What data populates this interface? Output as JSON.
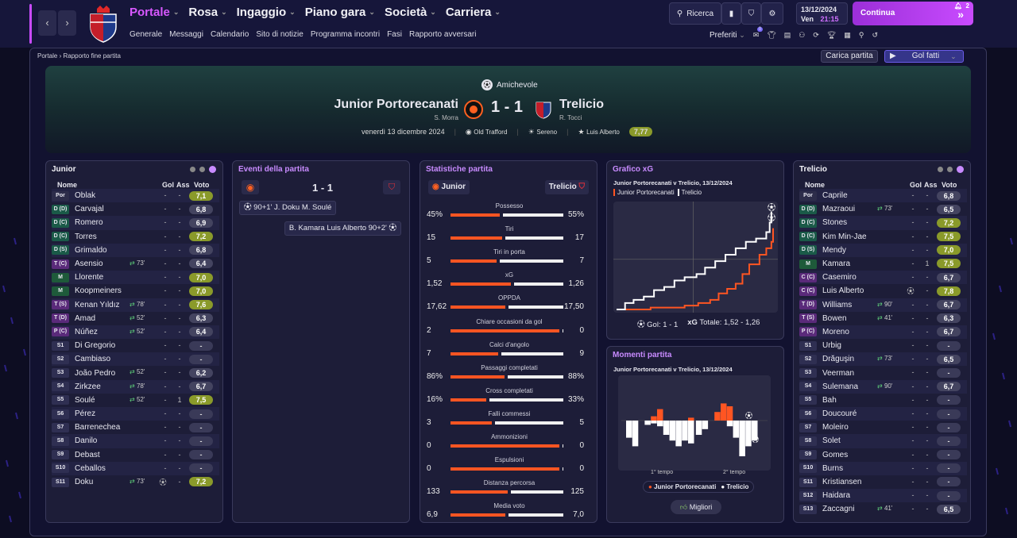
{
  "nav": {
    "main": [
      "Portale",
      "Rosa",
      "Ingaggio",
      "Piano gara",
      "Società",
      "Carriera"
    ],
    "sub": [
      "Generale",
      "Messaggi",
      "Calendario",
      "Sito di notizie",
      "Programma incontri",
      "Fasi",
      "Rapporto avversari"
    ]
  },
  "toolbar": {
    "search": "Ricerca",
    "date": "13/12/2024",
    "day": "Ven",
    "time": "21:15",
    "continue": "Continua",
    "badge": "2",
    "preferiti": "Preferiti",
    "pref_badge": "0"
  },
  "breadcrumb": {
    "root": "Portale",
    "current": "Rapporto fine partita"
  },
  "actions": {
    "load": "Carica partita",
    "goals": "Gol fatti"
  },
  "match": {
    "comp": "Amichevole",
    "home": "Junior Portorecanati",
    "away": "Trelicio",
    "score": "1 - 1",
    "home_coach": "S. Morra",
    "away_coach": "R. Tocci",
    "date": "venerdì 13 dicembre 2024",
    "stadium": "Old Trafford",
    "weather": "Sereno",
    "motm": "Luis Alberto",
    "motm_rating": "7,77"
  },
  "home_panel": {
    "title": "Junior",
    "col_name": "Nome",
    "col_gol": "Gol",
    "col_ass": "Ass",
    "col_voto": "Voto",
    "players": [
      {
        "pos": "Por",
        "name": "Oblak",
        "sub": "",
        "g": "-",
        "a": "-",
        "v": "7,1"
      },
      {
        "pos": "D (D)",
        "name": "Carvajal",
        "sub": "",
        "g": "-",
        "a": "-",
        "v": "6,8"
      },
      {
        "pos": "D (C)",
        "name": "Romero",
        "sub": "",
        "g": "-",
        "a": "-",
        "v": "6,9"
      },
      {
        "pos": "D (C)",
        "name": "Torres",
        "sub": "",
        "g": "-",
        "a": "-",
        "v": "7,2"
      },
      {
        "pos": "D (S)",
        "name": "Grimaldo",
        "sub": "",
        "g": "-",
        "a": "-",
        "v": "6,8"
      },
      {
        "pos": "T (C)",
        "name": "Asensio",
        "sub": "73'",
        "g": "-",
        "a": "-",
        "v": "6,4"
      },
      {
        "pos": "M",
        "name": "Llorente",
        "sub": "",
        "g": "-",
        "a": "-",
        "v": "7,0"
      },
      {
        "pos": "M",
        "name": "Koopmeiners",
        "sub": "",
        "g": "-",
        "a": "-",
        "v": "7,0"
      },
      {
        "pos": "T (S)",
        "name": "Kenan Yıldız",
        "sub": "78'",
        "g": "-",
        "a": "-",
        "v": "7,6"
      },
      {
        "pos": "T (D)",
        "name": "Amad",
        "sub": "52'",
        "g": "-",
        "a": "-",
        "v": "6,3"
      },
      {
        "pos": "P (C)",
        "name": "Núñez",
        "sub": "52'",
        "g": "-",
        "a": "-",
        "v": "6,4"
      },
      {
        "pos": "S1",
        "name": "Di Gregorio",
        "sub": "",
        "g": "-",
        "a": "-",
        "v": "-"
      },
      {
        "pos": "S2",
        "name": "Cambiaso",
        "sub": "",
        "g": "-",
        "a": "-",
        "v": "-"
      },
      {
        "pos": "S3",
        "name": "João Pedro",
        "sub": "52'",
        "g": "-",
        "a": "-",
        "v": "6,2"
      },
      {
        "pos": "S4",
        "name": "Zirkzee",
        "sub": "78'",
        "g": "-",
        "a": "-",
        "v": "6,7"
      },
      {
        "pos": "S5",
        "name": "Soulé",
        "sub": "52'",
        "g": "-",
        "a": "1",
        "v": "7,5"
      },
      {
        "pos": "S6",
        "name": "Pérez",
        "sub": "",
        "g": "-",
        "a": "-",
        "v": "-"
      },
      {
        "pos": "S7",
        "name": "Barrenechea",
        "sub": "",
        "g": "-",
        "a": "-",
        "v": "-"
      },
      {
        "pos": "S8",
        "name": "Danilo",
        "sub": "",
        "g": "-",
        "a": "-",
        "v": "-"
      },
      {
        "pos": "S9",
        "name": "Debast",
        "sub": "",
        "g": "-",
        "a": "-",
        "v": "-"
      },
      {
        "pos": "S10",
        "name": "Ceballos",
        "sub": "",
        "g": "-",
        "a": "-",
        "v": "-"
      },
      {
        "pos": "S11",
        "name": "Doku",
        "sub": "73'",
        "g": "goal-icon",
        "a": "-",
        "v": "7,2"
      }
    ]
  },
  "away_panel": {
    "title": "Trelicio",
    "col_name": "Nome",
    "col_gol": "Gol",
    "col_ass": "Ass",
    "col_voto": "Voto",
    "players": [
      {
        "pos": "Por",
        "name": "Caprile",
        "sub": "",
        "g": "-",
        "a": "-",
        "v": "6,8"
      },
      {
        "pos": "D (D)",
        "name": "Mazraoui",
        "sub": "73'",
        "g": "-",
        "a": "-",
        "v": "6,5"
      },
      {
        "pos": "D (C)",
        "name": "Stones",
        "sub": "",
        "g": "-",
        "a": "-",
        "v": "7,2"
      },
      {
        "pos": "D (C)",
        "name": "Kim Min-Jae",
        "sub": "",
        "g": "-",
        "a": "-",
        "v": "7,5"
      },
      {
        "pos": "D (S)",
        "name": "Mendy",
        "sub": "",
        "g": "-",
        "a": "-",
        "v": "7,0"
      },
      {
        "pos": "M",
        "name": "Kamara",
        "sub": "",
        "g": "-",
        "a": "1",
        "v": "7,5"
      },
      {
        "pos": "C (C)",
        "name": "Casemiro",
        "sub": "",
        "g": "-",
        "a": "-",
        "v": "6,7"
      },
      {
        "pos": "C (C)",
        "name": "Luis Alberto",
        "sub": "",
        "g": "goal-icon",
        "a": "-",
        "v": "7,8"
      },
      {
        "pos": "T (D)",
        "name": "Williams",
        "sub": "90'",
        "g": "-",
        "a": "-",
        "v": "6,7"
      },
      {
        "pos": "T (S)",
        "name": "Bowen",
        "sub": "41'",
        "g": "-",
        "a": "-",
        "v": "6,3"
      },
      {
        "pos": "P (C)",
        "name": "Moreno",
        "sub": "",
        "g": "-",
        "a": "-",
        "v": "6,7"
      },
      {
        "pos": "S1",
        "name": "Urbig",
        "sub": "",
        "g": "-",
        "a": "-",
        "v": "-"
      },
      {
        "pos": "S2",
        "name": "Drăguşin",
        "sub": "73'",
        "g": "-",
        "a": "-",
        "v": "6,5"
      },
      {
        "pos": "S3",
        "name": "Veerman",
        "sub": "",
        "g": "-",
        "a": "-",
        "v": "-"
      },
      {
        "pos": "S4",
        "name": "Sulemana",
        "sub": "90'",
        "g": "-",
        "a": "-",
        "v": "6,7"
      },
      {
        "pos": "S5",
        "name": "Bah",
        "sub": "",
        "g": "-",
        "a": "-",
        "v": "-"
      },
      {
        "pos": "S6",
        "name": "Doucouré",
        "sub": "",
        "g": "-",
        "a": "-",
        "v": "-"
      },
      {
        "pos": "S7",
        "name": "Moleiro",
        "sub": "",
        "g": "-",
        "a": "-",
        "v": "-"
      },
      {
        "pos": "S8",
        "name": "Solet",
        "sub": "",
        "g": "-",
        "a": "-",
        "v": "-"
      },
      {
        "pos": "S9",
        "name": "Gomes",
        "sub": "",
        "g": "-",
        "a": "-",
        "v": "-"
      },
      {
        "pos": "S10",
        "name": "Burns",
        "sub": "",
        "g": "-",
        "a": "-",
        "v": "-"
      },
      {
        "pos": "S11",
        "name": "Kristiansen",
        "sub": "",
        "g": "-",
        "a": "-",
        "v": "-"
      },
      {
        "pos": "S12",
        "name": "Haidara",
        "sub": "",
        "g": "-",
        "a": "-",
        "v": "-"
      },
      {
        "pos": "S13",
        "name": "Zaccagni",
        "sub": "41'",
        "g": "-",
        "a": "-",
        "v": "6,5"
      }
    ]
  },
  "events": {
    "title": "Eventi della partita",
    "score": "1 - 1",
    "list": [
      {
        "side": "home",
        "text": "90+1' J. Doku M. Soulé"
      },
      {
        "side": "away",
        "text": "B. Kamara Luis Alberto 90+2'"
      }
    ]
  },
  "stats": {
    "title": "Statistiche partita",
    "home": "Junior",
    "away": "Trelicio",
    "rows": [
      {
        "label": "Possesso",
        "h": "45%",
        "a": "55%",
        "hf": 0.45
      },
      {
        "label": "Tiri",
        "h": "15",
        "a": "17",
        "hf": 0.47
      },
      {
        "label": "Tiri in porta",
        "h": "5",
        "a": "7",
        "hf": 0.42
      },
      {
        "label": "xG",
        "h": "1,52",
        "a": "1,26",
        "hf": 0.55
      },
      {
        "label": "OPPDA",
        "h": "17,62",
        "a": "17,50",
        "hf": 0.5
      },
      {
        "label": "Chiare occasioni da gol",
        "h": "2",
        "a": "0",
        "hf": 0.98
      },
      {
        "label": "Calci d'angolo",
        "h": "7",
        "a": "9",
        "hf": 0.44
      },
      {
        "label": "Passaggi completati",
        "h": "86%",
        "a": "88%",
        "hf": 0.49
      },
      {
        "label": "Cross completati",
        "h": "16%",
        "a": "33%",
        "hf": 0.33
      },
      {
        "label": "Falli commessi",
        "h": "3",
        "a": "5",
        "hf": 0.38
      },
      {
        "label": "Ammonizioni",
        "h": "0",
        "a": "0",
        "hf": 0.98
      },
      {
        "label": "Espulsioni",
        "h": "0",
        "a": "0",
        "hf": 0.98
      },
      {
        "label": "Distanza percorsa",
        "h": "133",
        "a": "125",
        "hf": 0.52
      },
      {
        "label": "Media voto",
        "h": "6,9",
        "a": "7,0",
        "hf": 0.5
      }
    ]
  },
  "xg": {
    "title": "Grafico xG",
    "subtitle": "Junior Portorecanati v Trelicio, 13/12/2024",
    "legend_home": "Junior Portorecanati",
    "legend_away": "Trelicio",
    "goals": "Gol: 1 - 1",
    "total_label": "xG",
    "total": "Totale: 1,52 - 1,26"
  },
  "momenti": {
    "title": "Momenti partita",
    "subtitle": "Junior Portorecanati v Trelicio, 13/12/2024",
    "t1": "1° tempo",
    "t2": "2° tempo",
    "legend_home": "Junior Portorecanati",
    "legend_away": "Trelicio",
    "best": "Migliori"
  },
  "chart_data": [
    {
      "type": "line",
      "title": "Grafico xG",
      "xlim": [
        0,
        92
      ],
      "series": [
        {
          "name": "Junior Portorecanati",
          "color": "#ffffff",
          "x": [
            0,
            5,
            10,
            16,
            22,
            28,
            34,
            40,
            47,
            52,
            58,
            64,
            70,
            76,
            82,
            88,
            90,
            91
          ],
          "y": [
            0,
            0.1,
            0.15,
            0.2,
            0.3,
            0.35,
            0.45,
            0.5,
            0.55,
            0.65,
            0.75,
            0.85,
            0.95,
            1.05,
            1.1,
            1.2,
            1.35,
            1.52
          ]
        },
        {
          "name": "Trelicio",
          "color": "#ff5522",
          "x": [
            0,
            20,
            40,
            48,
            55,
            60,
            65,
            70,
            74,
            78,
            84,
            88,
            91,
            92
          ],
          "y": [
            0,
            0.03,
            0.06,
            0.1,
            0.15,
            0.25,
            0.32,
            0.4,
            0.55,
            0.7,
            0.85,
            0.95,
            1.05,
            1.26
          ]
        }
      ]
    },
    {
      "type": "bar",
      "title": "Momenti partita",
      "series": [
        {
          "name": "Junior Portorecanati",
          "color": "#ff5522",
          "values": [
            0,
            0,
            0,
            0,
            0.03,
            0.08,
            0,
            0,
            0,
            0,
            0.02,
            0,
            0,
            0,
            0.06,
            0.12,
            0.1,
            0,
            0,
            0,
            0
          ]
        },
        {
          "name": "Trelicio",
          "color": "#ffffff",
          "values": [
            0.12,
            0.18,
            0,
            0.03,
            0.02,
            0.04,
            0.1,
            0.14,
            0.18,
            0.14,
            0.16,
            0.1,
            0.06,
            0,
            0,
            0,
            0.04,
            0.12,
            0.25,
            0.18,
            0.14
          ]
        }
      ]
    }
  ]
}
